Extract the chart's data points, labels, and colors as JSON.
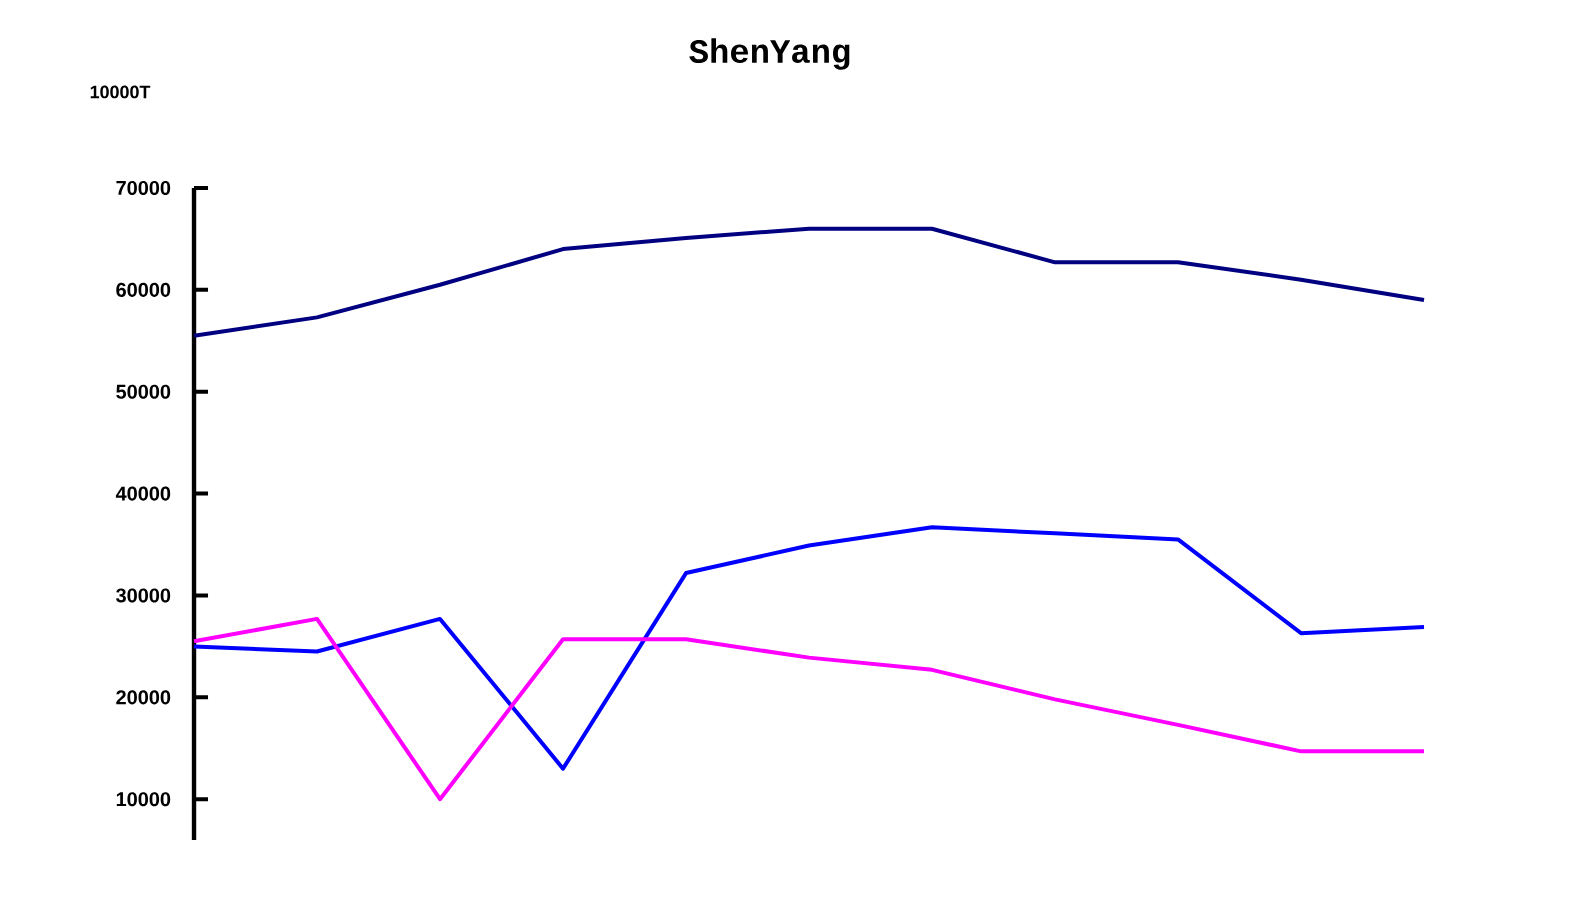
{
  "chart_data": {
    "type": "line",
    "title": "ShenYang",
    "ylabel": "10000T",
    "categories": [
      null,
      null,
      null,
      null,
      null,
      null,
      null,
      null,
      null,
      null,
      null
    ],
    "series": [
      {
        "color": "#000080",
        "values": [
          55500,
          57300,
          60500,
          64000,
          65100,
          66000,
          66000,
          62700,
          62700,
          61000,
          59000
        ]
      },
      {
        "color": "#0000ff",
        "values": [
          25000,
          24500,
          27700,
          13000,
          32200,
          34900,
          36700,
          36100,
          35500,
          26300,
          26900
        ]
      },
      {
        "color": "#ff00ff",
        "values": [
          25500,
          27700,
          10000,
          25700,
          25700,
          23900,
          22700,
          19800,
          17300,
          14700,
          14700
        ]
      }
    ],
    "ylim": [
      6000,
      70000
    ],
    "yticks": [
      10000,
      20000,
      30000,
      40000,
      50000,
      60000,
      70000
    ]
  }
}
